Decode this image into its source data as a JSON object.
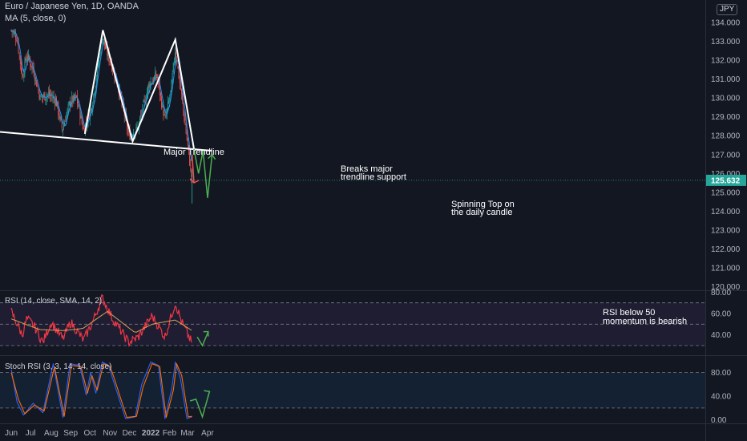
{
  "header": {
    "symbol_title": "Euro / Japanese Yen, 1D, OANDA",
    "ma_legend": "MA (5, close, 0)",
    "currency_badge": "JPY"
  },
  "price_badge": "125.632",
  "annotations": {
    "trendline_label": "Major Trendline",
    "breaks_line1": "Breaks major",
    "breaks_line2": "trendline support",
    "spinning_line1": "Spinning Top on",
    "spinning_line2": "the daily candle",
    "rsi_line1": "RSI below 50",
    "rsi_line2": "momentum is bearish"
  },
  "colors": {
    "background": "#131722",
    "bull": "#26a69a",
    "bear": "#ef5350",
    "ma": "#2196f3",
    "rsi": "#f23645",
    "rsi_ma": "#d4a15a",
    "stoch_k": "#2962ff",
    "stoch_d": "#ff6d00",
    "projection": "#4caf50",
    "trendline": "#ffffff"
  },
  "chart_data": [
    {
      "type": "candlestick",
      "title": "Euro / Japanese Yen, 1D, OANDA",
      "indicator": "MA (5, close, 0)",
      "x_ticks": [
        "Jun",
        "Jul",
        "Aug",
        "Sep",
        "Oct",
        "Nov",
        "Dec",
        "2022",
        "Feb",
        "Mar",
        "Apr"
      ],
      "y_ticks": [
        120.0,
        121.0,
        122.0,
        123.0,
        124.0,
        125.0,
        126.0,
        127.0,
        128.0,
        129.0,
        130.0,
        131.0,
        132.0,
        133.0,
        134.0
      ],
      "ylim": [
        119.8,
        135.2
      ],
      "last_price": 125.632,
      "close_path": [
        {
          "date": "2021-06-01",
          "price": 133.6
        },
        {
          "date": "2021-06-10",
          "price": 133.2
        },
        {
          "date": "2021-06-18",
          "price": 131.1
        },
        {
          "date": "2021-06-25",
          "price": 132.3
        },
        {
          "date": "2021-07-05",
          "price": 131.5
        },
        {
          "date": "2021-07-16",
          "price": 130.0
        },
        {
          "date": "2021-07-28",
          "price": 130.2
        },
        {
          "date": "2021-08-09",
          "price": 129.9
        },
        {
          "date": "2021-08-19",
          "price": 128.3
        },
        {
          "date": "2021-08-31",
          "price": 129.8
        },
        {
          "date": "2021-09-10",
          "price": 130.0
        },
        {
          "date": "2021-09-21",
          "price": 128.3
        },
        {
          "date": "2021-10-04",
          "price": 129.6
        },
        {
          "date": "2021-10-20",
          "price": 133.3
        },
        {
          "date": "2021-10-26",
          "price": 132.5
        },
        {
          "date": "2021-11-05",
          "price": 131.6
        },
        {
          "date": "2021-11-15",
          "price": 130.4
        },
        {
          "date": "2021-11-30",
          "price": 128.0
        },
        {
          "date": "2021-12-14",
          "price": 128.4
        },
        {
          "date": "2021-12-31",
          "price": 130.7
        },
        {
          "date": "2022-01-12",
          "price": 131.2
        },
        {
          "date": "2022-01-25",
          "price": 128.8
        },
        {
          "date": "2022-02-03",
          "price": 130.3
        },
        {
          "date": "2022-02-10",
          "price": 132.6
        },
        {
          "date": "2022-02-20",
          "price": 130.0
        },
        {
          "date": "2022-03-04",
          "price": 126.7
        },
        {
          "date": "2022-03-08",
          "price": 125.6
        }
      ],
      "trendline": [
        {
          "date": "2021-06-01",
          "price": 128.2
        },
        {
          "date": "2022-04-08",
          "price": 127.2
        }
      ],
      "drawn_path": [
        {
          "date": "2021-09-23",
          "price": 128.1
        },
        {
          "date": "2021-10-21",
          "price": 133.6
        },
        {
          "date": "2021-12-06",
          "price": 127.7
        },
        {
          "date": "2022-02-10",
          "price": 133.1
        },
        {
          "date": "2022-03-11",
          "price": 127.3
        }
      ],
      "projection": [
        {
          "date": "2022-03-11",
          "price": 127.3
        },
        {
          "date": "2022-03-18",
          "price": 126.0
        },
        {
          "date": "2022-03-25",
          "price": 127.2
        },
        {
          "date": "2022-04-01",
          "price": 124.7
        },
        {
          "date": "2022-04-08",
          "price": 127.0
        }
      ],
      "arrow_down": [
        {
          "date": "2022-03-08",
          "price": 127.0
        },
        {
          "date": "2022-03-11",
          "price": 125.5
        }
      ]
    },
    {
      "type": "line",
      "title": "RSI (14, close, SMA, 14, 2)",
      "y_ticks": [
        40.0,
        60.0,
        80.0
      ],
      "ylim": [
        21,
        81
      ],
      "bands": [
        30,
        50,
        70
      ],
      "series": [
        {
          "name": "RSI",
          "points": [
            {
              "date": "2021-06-01",
              "value": 62
            },
            {
              "date": "2021-06-18",
              "value": 40
            },
            {
              "date": "2021-06-25",
              "value": 55
            },
            {
              "date": "2021-07-06",
              "value": 49
            },
            {
              "date": "2021-07-20",
              "value": 33
            },
            {
              "date": "2021-08-02",
              "value": 52
            },
            {
              "date": "2021-08-20",
              "value": 36
            },
            {
              "date": "2021-09-01",
              "value": 52
            },
            {
              "date": "2021-09-21",
              "value": 35
            },
            {
              "date": "2021-10-05",
              "value": 52
            },
            {
              "date": "2021-10-20",
              "value": 75
            },
            {
              "date": "2021-11-05",
              "value": 55
            },
            {
              "date": "2021-11-30",
              "value": 33
            },
            {
              "date": "2021-12-15",
              "value": 38
            },
            {
              "date": "2022-01-05",
              "value": 58
            },
            {
              "date": "2022-01-25",
              "value": 38
            },
            {
              "date": "2022-02-10",
              "value": 70
            },
            {
              "date": "2022-02-20",
              "value": 52
            },
            {
              "date": "2022-03-08",
              "value": 32
            }
          ]
        },
        {
          "name": "RSI-based MA",
          "points": [
            {
              "date": "2021-06-01",
              "value": 55
            },
            {
              "date": "2021-07-15",
              "value": 45
            },
            {
              "date": "2021-08-20",
              "value": 44
            },
            {
              "date": "2021-09-20",
              "value": 46
            },
            {
              "date": "2021-10-28",
              "value": 62
            },
            {
              "date": "2021-12-10",
              "value": 42
            },
            {
              "date": "2022-01-05",
              "value": 50
            },
            {
              "date": "2022-02-10",
              "value": 54
            },
            {
              "date": "2022-03-08",
              "value": 44
            }
          ]
        }
      ],
      "projection": [
        {
          "date": "2022-03-16",
          "value": 38
        },
        {
          "date": "2022-03-24",
          "value": 30
        },
        {
          "date": "2022-04-02",
          "value": 43
        }
      ]
    },
    {
      "type": "line",
      "title": "Stoch RSI (3, 3, 14, 14, close)",
      "y_ticks": [
        0.0,
        40.0,
        80.0
      ],
      "ylim": [
        -6,
        108
      ],
      "bands": [
        20,
        80
      ],
      "series": [
        {
          "name": "K",
          "points": [
            {
              "date": "2021-06-01",
              "value": 85
            },
            {
              "date": "2021-06-10",
              "value": 30
            },
            {
              "date": "2021-06-20",
              "value": 8
            },
            {
              "date": "2021-07-05",
              "value": 28
            },
            {
              "date": "2021-07-20",
              "value": 12
            },
            {
              "date": "2021-08-05",
              "value": 95
            },
            {
              "date": "2021-08-20",
              "value": 4
            },
            {
              "date": "2021-08-31",
              "value": 95
            },
            {
              "date": "2021-09-15",
              "value": 92
            },
            {
              "date": "2021-09-25",
              "value": 42
            },
            {
              "date": "2021-10-02",
              "value": 80
            },
            {
              "date": "2021-10-10",
              "value": 45
            },
            {
              "date": "2021-10-20",
              "value": 98
            },
            {
              "date": "2021-10-30",
              "value": 92
            },
            {
              "date": "2021-11-05",
              "value": 70
            },
            {
              "date": "2021-11-25",
              "value": 2
            },
            {
              "date": "2021-12-10",
              "value": 5
            },
            {
              "date": "2021-12-20",
              "value": 60
            },
            {
              "date": "2022-01-03",
              "value": 98
            },
            {
              "date": "2022-01-15",
              "value": 92
            },
            {
              "date": "2022-01-25",
              "value": 2
            },
            {
              "date": "2022-02-05",
              "value": 55
            },
            {
              "date": "2022-02-10",
              "value": 98
            },
            {
              "date": "2022-02-18",
              "value": 70
            },
            {
              "date": "2022-02-28",
              "value": 2
            },
            {
              "date": "2022-03-08",
              "value": 5
            }
          ]
        },
        {
          "name": "D",
          "points": [
            {
              "date": "2021-06-01",
              "value": 80
            },
            {
              "date": "2021-06-12",
              "value": 35
            },
            {
              "date": "2021-06-22",
              "value": 10
            },
            {
              "date": "2021-07-07",
              "value": 25
            },
            {
              "date": "2021-07-22",
              "value": 15
            },
            {
              "date": "2021-08-07",
              "value": 90
            },
            {
              "date": "2021-08-22",
              "value": 6
            },
            {
              "date": "2021-09-02",
              "value": 92
            },
            {
              "date": "2021-09-17",
              "value": 90
            },
            {
              "date": "2021-09-27",
              "value": 45
            },
            {
              "date": "2021-10-04",
              "value": 75
            },
            {
              "date": "2021-10-12",
              "value": 50
            },
            {
              "date": "2021-10-22",
              "value": 95
            },
            {
              "date": "2021-11-01",
              "value": 90
            },
            {
              "date": "2021-11-07",
              "value": 72
            },
            {
              "date": "2021-11-27",
              "value": 4
            },
            {
              "date": "2021-12-12",
              "value": 6
            },
            {
              "date": "2021-12-22",
              "value": 55
            },
            {
              "date": "2022-01-05",
              "value": 95
            },
            {
              "date": "2022-01-17",
              "value": 90
            },
            {
              "date": "2022-01-27",
              "value": 4
            },
            {
              "date": "2022-02-07",
              "value": 50
            },
            {
              "date": "2022-02-12",
              "value": 95
            },
            {
              "date": "2022-02-20",
              "value": 75
            },
            {
              "date": "2022-03-02",
              "value": 5
            },
            {
              "date": "2022-03-08",
              "value": 6
            }
          ]
        }
      ],
      "projection": [
        {
          "date": "2022-03-14",
          "value": 35
        },
        {
          "date": "2022-03-24",
          "value": 5
        },
        {
          "date": "2022-04-04",
          "value": 48
        }
      ]
    }
  ]
}
